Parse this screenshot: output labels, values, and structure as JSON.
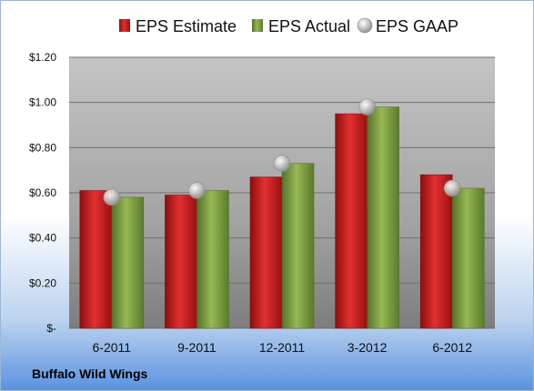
{
  "company": "Buffalo Wild Wings",
  "chart_data": {
    "type": "bar",
    "title": "",
    "xlabel": "",
    "ylabel": "",
    "categories": [
      "6-2011",
      "9-2011",
      "12-2011",
      "3-2012",
      "6-2012"
    ],
    "series": [
      {
        "name": "EPS Estimate",
        "type": "bar",
        "color": "#cc1f1f",
        "values": [
          0.61,
          0.59,
          0.67,
          0.95,
          0.68
        ]
      },
      {
        "name": "EPS Actual",
        "type": "bar",
        "color": "#7a9b3a",
        "values": [
          0.58,
          0.61,
          0.73,
          0.98,
          0.62
        ]
      },
      {
        "name": "EPS GAAP",
        "type": "scatter",
        "color": "#b8b8b8",
        "values": [
          0.58,
          0.61,
          0.73,
          0.98,
          0.62
        ]
      }
    ],
    "ylim": [
      0,
      1.2
    ],
    "yticks": [
      0,
      0.2,
      0.4,
      0.6,
      0.8,
      1.0,
      1.2
    ],
    "ytick_labels": [
      "$-",
      "$0.20",
      "$0.40",
      "$0.60",
      "$0.80",
      "$1.00",
      "$1.20"
    ],
    "grid": true,
    "legend": "top"
  }
}
